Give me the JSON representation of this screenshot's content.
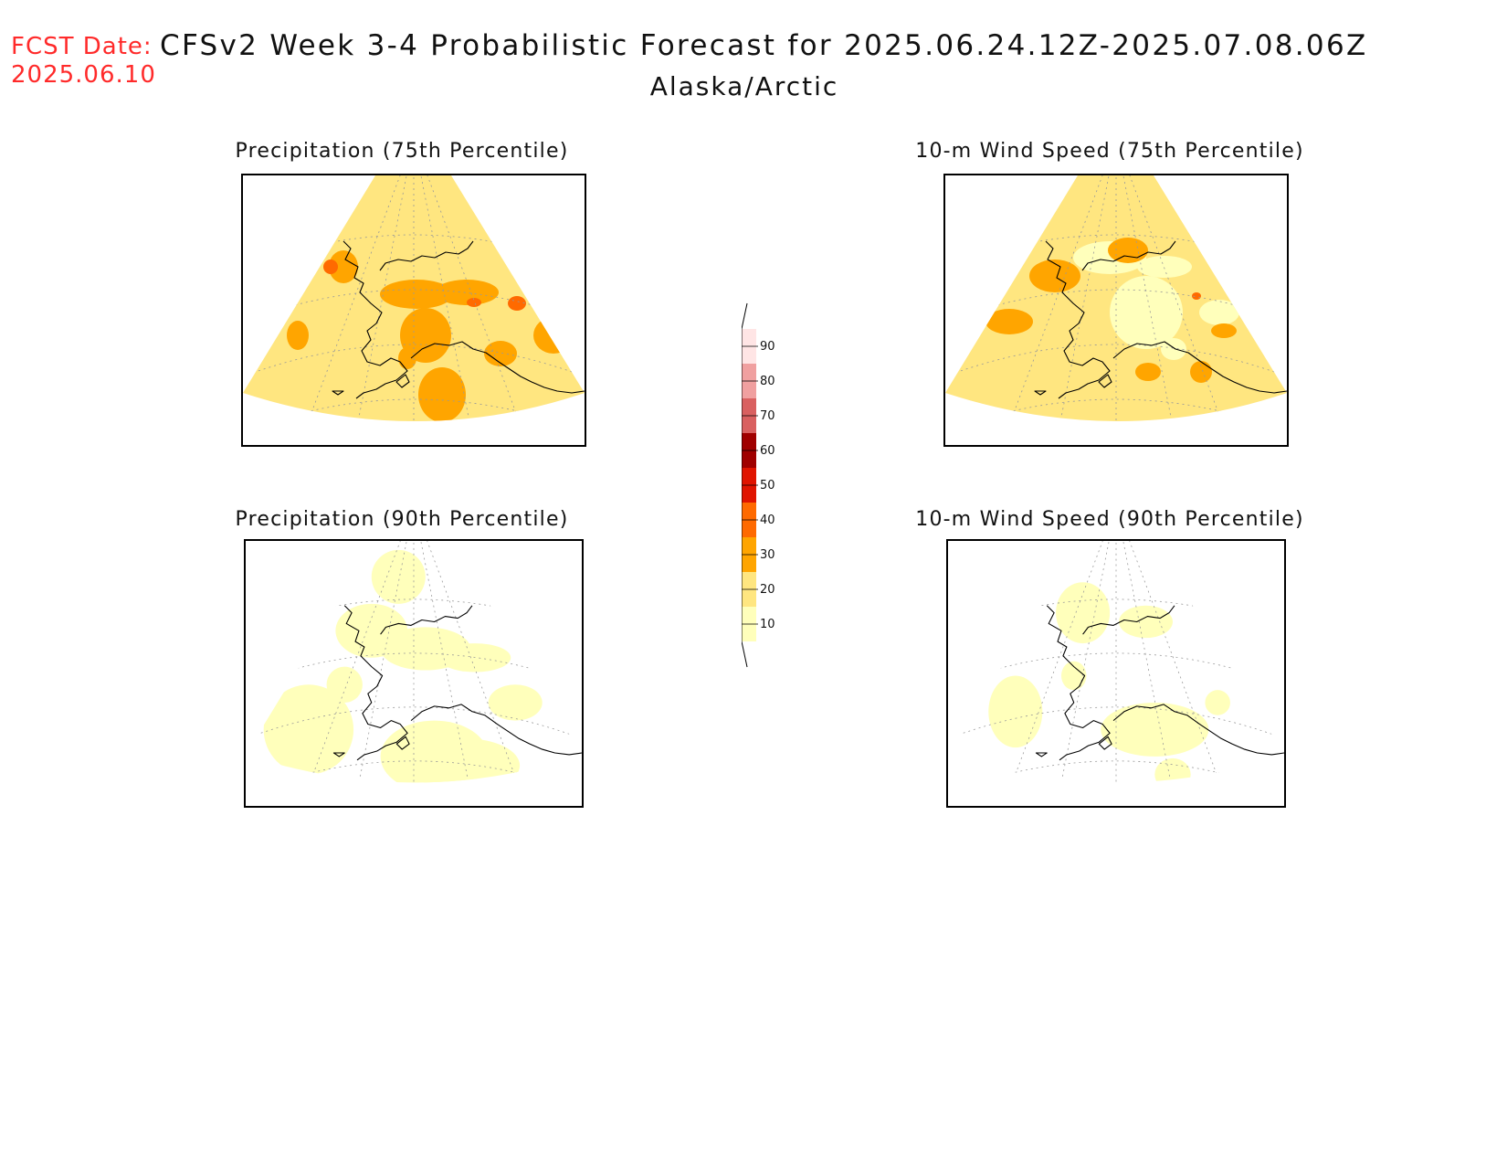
{
  "header": {
    "fcst_label": "FCST Date:",
    "fcst_date": "2025.06.10",
    "title": "CFSv2 Week 3-4 Probabilistic Forecast for 2025.06.24.12Z-2025.07.08.06Z",
    "region": "Alaska/Arctic"
  },
  "panels": [
    {
      "id": "precip75",
      "title": "Precipitation (75th Percentile)",
      "base_color": "#ffe680",
      "dominant_level": "20-30"
    },
    {
      "id": "wind75",
      "title": "10-m Wind Speed (75th Percentile)",
      "base_color": "#ffe680",
      "dominant_level": "20-30"
    },
    {
      "id": "precip90",
      "title": "Precipitation (90th Percentile)",
      "base_color": "#ffffbb",
      "dominant_level": "10-20"
    },
    {
      "id": "wind90",
      "title": "10-m Wind Speed (90th Percentile)",
      "base_color": "#ffffbb",
      "dominant_level": "10-20"
    }
  ],
  "legend": {
    "levels": [
      "10",
      "20",
      "30",
      "40",
      "50",
      "60",
      "70",
      "80",
      "90"
    ],
    "colors": [
      "#ffffbb",
      "#ffe680",
      "#ffa500",
      "#ff6a00",
      "#e01400",
      "#a00000",
      "#d96060",
      "#f0a0a0",
      "#ffe5e5"
    ]
  }
}
